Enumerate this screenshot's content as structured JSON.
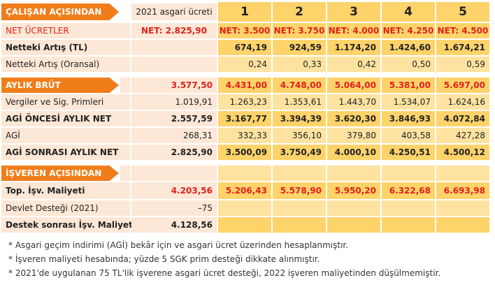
{
  "header": {
    "title": "ÇALIŞAN AÇISINDAN",
    "base_label": "2021 asgari ücreti",
    "columns": [
      "1",
      "2",
      "3",
      "4",
      "5"
    ]
  },
  "rows": [
    {
      "label": "NET ÜCRETLER",
      "base": "NET: 2.825,90",
      "values": [
        "NET: 3.500",
        "NET: 3.750",
        "NET: 4.000",
        "NET: 4.250",
        "NET: 4.500"
      ]
    },
    {
      "label": "Netteki Artış (TL)",
      "values": [
        "674,19",
        "924,59",
        "1.174,20",
        "1.424,60",
        "1.674,21"
      ]
    },
    {
      "label": "Netteki Artış (Oransal)",
      "values": [
        "0,24",
        "0,33",
        "0,42",
        "0,50",
        "0,59"
      ]
    },
    {
      "label": "AYLIK BRÜT",
      "base": "3.577,50",
      "values": [
        "4.431,00",
        "4.748,00",
        "5.064,00",
        "5.381,00",
        "5.697,00"
      ]
    },
    {
      "label": "Vergiler ve Sig. Primleri",
      "base": "1.019,91",
      "values": [
        "1.263,23",
        "1.353,61",
        "1.443,70",
        "1.534,07",
        "1.624,16"
      ]
    },
    {
      "label": "AGİ ÖNCESİ AYLIK NET",
      "base": "2.557,59",
      "values": [
        "3.167,77",
        "3.394,39",
        "3.620,30",
        "3.846,93",
        "4.072,84"
      ]
    },
    {
      "label": "AGİ",
      "base": "268,31",
      "values": [
        "332,33",
        "356,10",
        "379,80",
        "403,58",
        "427,28"
      ]
    },
    {
      "label": "AGİ SONRASI AYLIK NET",
      "base": "2.825,90",
      "values": [
        "3.500,09",
        "3.750,49",
        "4.000,10",
        "4.250,51",
        "4.500,12"
      ]
    },
    {
      "label": "İŞVEREN AÇISINDAN"
    },
    {
      "label": "Top. İşv. Maliyeti",
      "base": "4.203,56",
      "values": [
        "5.206,43",
        "5.578,90",
        "5.950,20",
        "6.322,68",
        "6.693,98"
      ]
    },
    {
      "label": "Devlet Desteği (2021)",
      "base": "–75"
    },
    {
      "label": "Destek sonrası İşv. Maliyeti",
      "base": "4.128,56"
    }
  ],
  "footnotes": [
    "* Asgari geçim indirimi (AGİ) bekâr için ve asgari ücret üzerinden hesaplanmıştır.",
    "* İşveren maliyeti hesabında; yüzde 5 SGK prim desteği dikkate alınmıştır.",
    "* 2021'de uygulanan 75 TL'lik işverene asgari ücret desteği, 2022 işveren maliyetinden düşülmemiştir."
  ]
}
